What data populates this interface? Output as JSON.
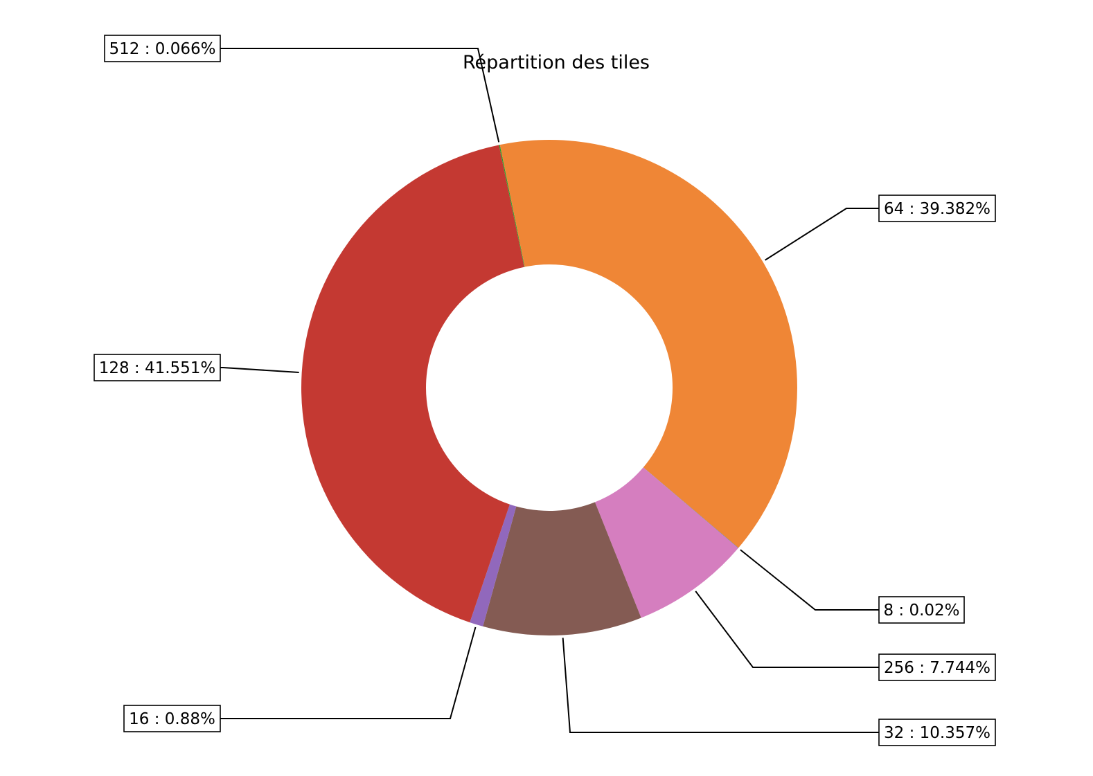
{
  "chart_data": {
    "type": "pie",
    "donut": true,
    "title": "Répartition des tiles",
    "categories": [
      "512",
      "64",
      "8",
      "256",
      "32",
      "16",
      "128"
    ],
    "values": [
      0.066,
      39.382,
      0.02,
      7.744,
      10.357,
      0.88,
      41.551
    ],
    "labels": [
      "512 : 0.066%",
      "64 : 39.382%",
      "8 : 0.02%",
      "256 : 7.744%",
      "32 : 10.357%",
      "16 : 0.88%",
      "128 : 41.551%"
    ],
    "colors": [
      "#2ca02c",
      "#ef8636",
      "#3b75af",
      "#d57ebf",
      "#845b53",
      "#9168bc",
      "#c43932"
    ],
    "legend": "none"
  }
}
